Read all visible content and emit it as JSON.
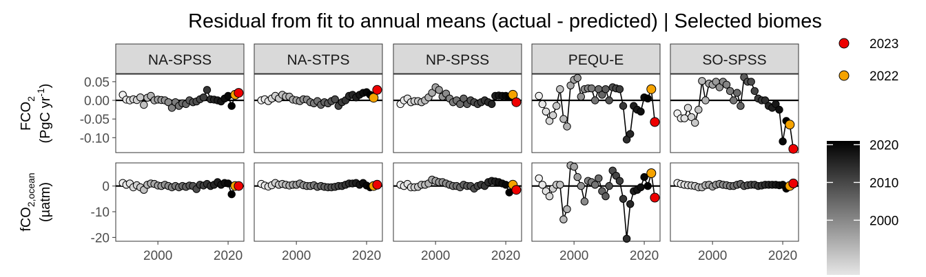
{
  "chart_data": {
    "type": "scatter",
    "title": "Residual from fit to annual means (actual - predicted) | Selected biomes",
    "panels": [
      "NA-SPSS",
      "NA-STPS",
      "NP-SPSS",
      "PEQU-E",
      "SO-SPSS"
    ],
    "rows": [
      {
        "label_main": "FCO",
        "label_sub": "2",
        "label_unit_pre": "(PgC yr",
        "label_unit_sup": "-1",
        "label_unit_post": ")",
        "ylim": [
          -0.14,
          0.07
        ],
        "ticks": [
          0.05,
          0.0,
          -0.05,
          -0.1
        ],
        "tick_labels": [
          "0.05",
          "0.00",
          "-0.05",
          "-0.10"
        ]
      },
      {
        "label_main": "fCO",
        "label_sub": "2,ocean",
        "label_unit": "(µatm)",
        "ylim": [
          -21.5,
          9
        ],
        "ticks": [
          0,
          -10,
          -20
        ],
        "tick_labels": [
          "0",
          "-10",
          "-20"
        ]
      }
    ],
    "xlim": [
      1988,
      2024.5
    ],
    "xticks": [
      2000,
      2020
    ],
    "xtick_labels": [
      "2000",
      "2020"
    ],
    "years": [
      1990,
      1991,
      1992,
      1993,
      1994,
      1995,
      1996,
      1997,
      1998,
      1999,
      2000,
      2001,
      2002,
      2003,
      2004,
      2005,
      2006,
      2007,
      2008,
      2009,
      2010,
      2011,
      2012,
      2013,
      2014,
      2015,
      2016,
      2017,
      2018,
      2019,
      2020,
      2021,
      2022,
      2023
    ],
    "series": [
      {
        "panel": "NA-SPSS",
        "row": 0,
        "values": [
          0.015,
          0.002,
          0.0,
          0.003,
          0.001,
          0.008,
          -0.012,
          0.007,
          0.012,
          0.0,
          0.002,
          0.001,
          0.0,
          -0.005,
          -0.02,
          -0.005,
          -0.015,
          -0.008,
          -0.01,
          0.0,
          -0.005,
          -0.003,
          0.003,
          0.008,
          0.028,
          0.003,
          0.002,
          0.0,
          -0.003,
          0.005,
          0.012,
          -0.015,
          0.015,
          0.02
        ]
      },
      {
        "panel": "NA-STPS",
        "row": 0,
        "values": [
          0.0,
          0.003,
          -0.002,
          0.005,
          0.012,
          0.005,
          0.015,
          0.01,
          0.01,
          0.002,
          0.0,
          -0.002,
          0.003,
          0.002,
          -0.005,
          -0.008,
          -0.002,
          -0.012,
          -0.005,
          -0.008,
          -0.002,
          0.003,
          -0.015,
          -0.005,
          0.0,
          0.012,
          0.015,
          0.008,
          0.015,
          0.02,
          0.022,
          0.015,
          0.007,
          0.028
        ]
      },
      {
        "panel": "NP-SPSS",
        "row": 0,
        "values": [
          -0.01,
          0.0,
          0.005,
          -0.005,
          -0.002,
          -0.002,
          -0.005,
          0.0,
          0.008,
          0.02,
          0.035,
          0.028,
          0.01,
          0.018,
          0.005,
          -0.005,
          0.0,
          -0.01,
          0.005,
          -0.01,
          0.0,
          -0.005,
          -0.01,
          -0.005,
          0.0,
          -0.005,
          -0.01,
          0.012,
          0.013,
          0.012,
          0.012,
          0.01,
          0.015,
          -0.005
        ]
      },
      {
        "panel": "PEQU-E",
        "row": 0,
        "values": [
          0.012,
          -0.01,
          -0.03,
          -0.055,
          -0.04,
          -0.015,
          0.03,
          -0.05,
          -0.07,
          0.04,
          0.055,
          0.06,
          0.01,
          0.03,
          0.032,
          0.032,
          0.0,
          0.03,
          0.015,
          0.03,
          0.0,
          0.035,
          0.032,
          0.03,
          -0.015,
          -0.105,
          -0.09,
          -0.015,
          -0.025,
          -0.03,
          0.008,
          0.005,
          0.03,
          -0.058
        ]
      },
      {
        "panel": "SO-SPSS",
        "row": 0,
        "values": [
          -0.035,
          -0.048,
          -0.048,
          -0.02,
          -0.045,
          -0.06,
          -0.025,
          0.052,
          0.0,
          0.045,
          0.042,
          0.05,
          0.035,
          0.05,
          0.042,
          0.025,
          0.0,
          0.02,
          -0.015,
          0.062,
          0.05,
          0.05,
          0.025,
          0.005,
          0.0,
          0.0,
          -0.015,
          -0.02,
          -0.01,
          -0.025,
          -0.11,
          -0.055,
          -0.065,
          -0.13
        ]
      },
      {
        "panel": "NA-SPSS",
        "row": 1,
        "values": [
          1.2,
          0.5,
          1.0,
          -0.5,
          0.3,
          -0.5,
          -1.5,
          0.5,
          1.0,
          0.8,
          0.2,
          0.0,
          0.5,
          0.0,
          -0.5,
          0.0,
          -0.5,
          0.0,
          -0.3,
          0.2,
          0.0,
          -1.2,
          0.5,
          0.2,
          0.8,
          0.0,
          0.5,
          1.5,
          0.5,
          1.2,
          1.0,
          -3.2,
          0.0,
          0.0
        ]
      },
      {
        "panel": "NA-STPS",
        "row": 1,
        "values": [
          0.8,
          0.2,
          -0.2,
          0.3,
          1.2,
          0.5,
          0.8,
          0.5,
          0.2,
          0.5,
          0.5,
          1.0,
          0.3,
          0.0,
          0.0,
          0.3,
          -0.3,
          0.0,
          -0.3,
          -0.5,
          -0.5,
          -0.3,
          0.0,
          0.0,
          0.5,
          1.0,
          1.0,
          1.2,
          0.5,
          1.2,
          0.2,
          -0.5,
          0.0,
          0.5
        ]
      },
      {
        "panel": "NP-SPSS",
        "row": 1,
        "values": [
          0.5,
          0.0,
          0.8,
          -0.5,
          -0.5,
          -0.3,
          0.5,
          0.5,
          1.0,
          2.5,
          2.0,
          1.5,
          1.5,
          1.0,
          0.5,
          0.0,
          0.0,
          -0.5,
          0.5,
          0.0,
          0.0,
          -1.0,
          0.0,
          0.5,
          0.0,
          1.5,
          2.0,
          1.8,
          1.5,
          1.0,
          0.5,
          -2.5,
          0.5,
          -1.5
        ]
      },
      {
        "panel": "PEQU-E",
        "row": 1,
        "values": [
          3.0,
          0.5,
          -2.0,
          -4.0,
          -1.0,
          0.5,
          0.5,
          -13.0,
          -9.0,
          8.0,
          7.5,
          3.5,
          0.0,
          -6.0,
          2.0,
          1.5,
          0.5,
          3.0,
          -2.0,
          -4.0,
          0.0,
          6.0,
          4.0,
          2.0,
          -5.0,
          -20.5,
          -7.0,
          -2.0,
          -1.5,
          -0.5,
          3.5,
          0.0,
          5.0,
          -4.5
        ]
      },
      {
        "panel": "SO-SPSS",
        "row": 1,
        "values": [
          1.2,
          0.8,
          0.5,
          0.3,
          0.2,
          0.0,
          -0.5,
          -0.5,
          0.3,
          0.5,
          -0.2,
          0.5,
          0.8,
          0.5,
          0.3,
          0.0,
          0.0,
          0.5,
          0.8,
          0.0,
          0.3,
          0.5,
          0.5,
          0.0,
          0.2,
          0.5,
          0.5,
          0.5,
          0.5,
          0.3,
          0.5,
          -1.0,
          0.0,
          1.0
        ]
      }
    ],
    "legend": {
      "points": [
        {
          "label": "2023",
          "color": "#ee0000"
        },
        {
          "label": "2022",
          "color": "#f5a300"
        }
      ],
      "colorbar": {
        "ticks": [
          2020,
          2010,
          2000
        ],
        "tick_labels": [
          "2020",
          "2010",
          "2000"
        ],
        "range": [
          1990,
          2021
        ],
        "from": "#e6e6e6",
        "to": "#000000"
      }
    }
  }
}
